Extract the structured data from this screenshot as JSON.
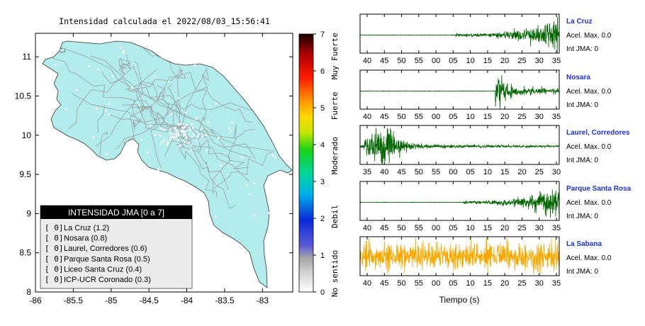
{
  "map": {
    "title": "Intensidad calculada el 2022/08/03_15:56:41",
    "land_color": "#b3ecec",
    "x_ticks": [
      "-86",
      "-85.5",
      "-85",
      "-84.5",
      "-84",
      "-83.5",
      "-83"
    ],
    "y_ticks": [
      "11",
      "10.5",
      "10",
      "9.5",
      "9",
      "8.5",
      "8"
    ],
    "xlim": [
      -86,
      -82.6
    ],
    "ylim": [
      8,
      11.3
    ]
  },
  "legend": {
    "header": "INTENSIDAD JMA [0 a 7]",
    "items": [
      {
        "value": "[ 0]",
        "label": "La Cruz (1.2)"
      },
      {
        "value": "[ 0]",
        "label": "Nosara (0.8)"
      },
      {
        "value": "[ 0]",
        "label": "Laurel, Corredores (0.6)"
      },
      {
        "value": "[ 0]",
        "label": "Parque Santa Rosa (0.5)"
      },
      {
        "value": "[ 0]",
        "label": "Liceo Santa Cruz (0.4)"
      },
      {
        "value": "[ 0]",
        "label": "ICP-UCR Coronado (0.3)"
      }
    ]
  },
  "colorbar": {
    "ticks": [
      "0",
      "1",
      "2",
      "3",
      "4",
      "5",
      "6",
      "7"
    ],
    "categories": [
      "No sentido",
      "Debil",
      "Moderado",
      "Fuerte",
      "Muy Fuerte"
    ],
    "range": [
      0,
      7
    ]
  },
  "chart_data": [
    {
      "type": "line",
      "name": "La Cruz",
      "color": "#006400",
      "x_ticks": [
        "40",
        "45",
        "50",
        "55",
        "00",
        "05",
        "10",
        "15",
        "20",
        "25",
        "30",
        "35"
      ],
      "acel_text": "Acel. Max. 0.0",
      "int_text": "Int JMA: 0",
      "onset": 0.48,
      "profile": "growing",
      "amplitude": 1.0
    },
    {
      "type": "line",
      "name": "Nosara",
      "color": "#006400",
      "x_ticks": [
        "40",
        "45",
        "50",
        "55",
        "00",
        "05",
        "10",
        "15",
        "20",
        "25",
        "30",
        "35"
      ],
      "acel_text": "Acel. Max. 0.0",
      "int_text": "Int JMA: 0",
      "onset": 0.68,
      "profile": "spike",
      "amplitude": 1.0
    },
    {
      "type": "line",
      "name": "Laurel, Corredores",
      "color": "#006400",
      "x_ticks": [
        "35",
        "40",
        "45",
        "50",
        "55",
        "00",
        "05",
        "10",
        "15",
        "20",
        "25",
        "30"
      ],
      "acel_text": "Acel. Max. 0.0",
      "int_text": "Int JMA: 0",
      "onset": 0.0,
      "profile": "early",
      "amplitude": 1.0
    },
    {
      "type": "line",
      "name": "Parque Santa Rosa",
      "color": "#006400",
      "x_ticks": [
        "40",
        "45",
        "50",
        "55",
        "00",
        "05",
        "10",
        "15",
        "20",
        "25",
        "30",
        "35"
      ],
      "acel_text": "Acel. Max. 0.0",
      "int_text": "Int JMA: 0",
      "onset": 0.52,
      "profile": "growing",
      "amplitude": 1.0
    },
    {
      "type": "line",
      "name": "La Sabana",
      "color": "#f5a800",
      "x_ticks": [
        "40",
        "45",
        "50",
        "55",
        "00",
        "05",
        "10",
        "15",
        "20",
        "25",
        "30",
        "35"
      ],
      "acel_text": "Acel. Max. 0.0",
      "int_text": "Int JMA: 0",
      "onset": 0.0,
      "profile": "noise",
      "amplitude": 1.0,
      "xlabel": "Tiempo (s)"
    }
  ]
}
